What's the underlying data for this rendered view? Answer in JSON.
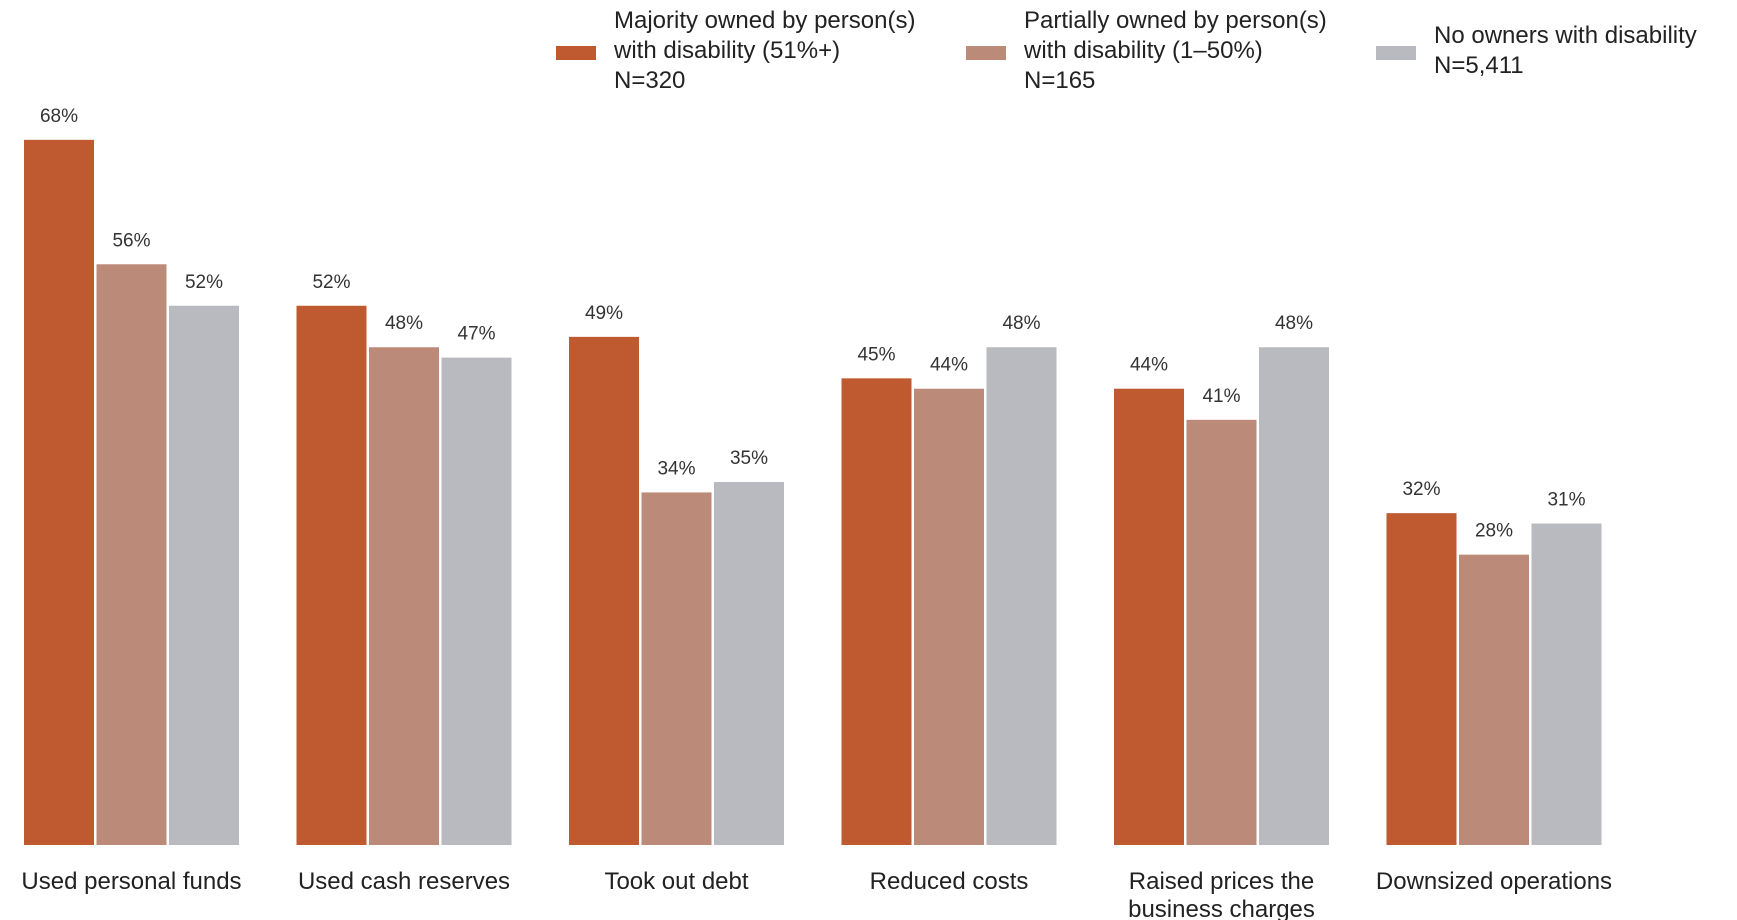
{
  "chart_data": {
    "type": "bar",
    "title": "",
    "xlabel": "",
    "ylabel": "",
    "ylim": [
      0,
      70
    ],
    "grid": false,
    "legend_position": "top-right",
    "categories": [
      [
        "Used personal funds"
      ],
      [
        "Used cash reserves"
      ],
      [
        "Took out debt"
      ],
      [
        "Reduced costs"
      ],
      [
        "Raised prices the",
        "business charges"
      ],
      [
        "Downsized operations"
      ]
    ],
    "series": [
      {
        "name": [
          "Majority owned by person(s)",
          "with disability (51%+)",
          "N=320"
        ],
        "color": "#bf5930",
        "values": [
          68,
          52,
          49,
          45,
          44,
          32
        ],
        "labels": [
          "68%",
          "52%",
          "49%",
          "45%",
          "44%",
          "32%"
        ]
      },
      {
        "name": [
          "Partially owned by person(s)",
          "with disability (1–50%)",
          "N=165"
        ],
        "color": "#bc8a79",
        "values": [
          56,
          48,
          34,
          44,
          41,
          28
        ],
        "labels": [
          "56%",
          "48%",
          "34%",
          "44%",
          "41%",
          "28%"
        ]
      },
      {
        "name": [
          "No owners with disability",
          "N=5,411"
        ],
        "color": "#b9babf",
        "values": [
          52,
          47,
          35,
          48,
          48,
          31
        ],
        "labels": [
          "52%",
          "47%",
          "35%",
          "48%",
          "48%",
          "31%"
        ]
      }
    ]
  }
}
